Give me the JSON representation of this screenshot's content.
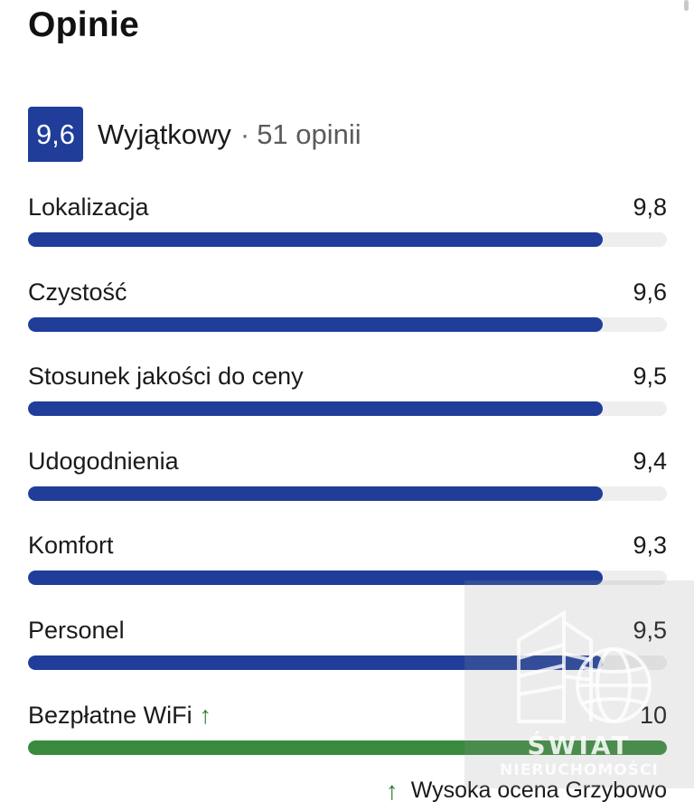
{
  "page": {
    "title": "Opinie"
  },
  "summary": {
    "score": "9,6",
    "rating_word": "Wyjątkowy",
    "separator": "·",
    "reviews_count": "51 opinii"
  },
  "categories": [
    {
      "label": "Lokalizacja",
      "value": "9,8",
      "fill_fraction": 0.9,
      "color": "#1f3d99"
    },
    {
      "label": "Czystość",
      "value": "9,6",
      "fill_fraction": 0.9,
      "color": "#1f3d99"
    },
    {
      "label": "Stosunek jakości do ceny",
      "value": "9,5",
      "fill_fraction": 0.9,
      "color": "#1f3d99"
    },
    {
      "label": "Udogodnienia",
      "value": "9,4",
      "fill_fraction": 0.9,
      "color": "#1f3d99"
    },
    {
      "label": "Komfort",
      "value": "9,3",
      "fill_fraction": 0.9,
      "color": "#1f3d99"
    },
    {
      "label": "Personel",
      "value": "9,5",
      "fill_fraction": 0.9,
      "color": "#1f3d99"
    },
    {
      "label": "Bezpłatne WiFi",
      "value": "10",
      "fill_fraction": 1.0,
      "color": "#3a8a3d",
      "trend_icon": "arrow-up-icon"
    }
  ],
  "footnote": {
    "icon": "arrow-up-icon",
    "text": "Wysoka ocena Grzybowo"
  },
  "watermark": {
    "line1": "ŚWIAT",
    "line2": "NIERUCHOMOŚCI"
  },
  "colors": {
    "brand_blue": "#1f3d99",
    "positive_green": "#3a8a3d"
  }
}
